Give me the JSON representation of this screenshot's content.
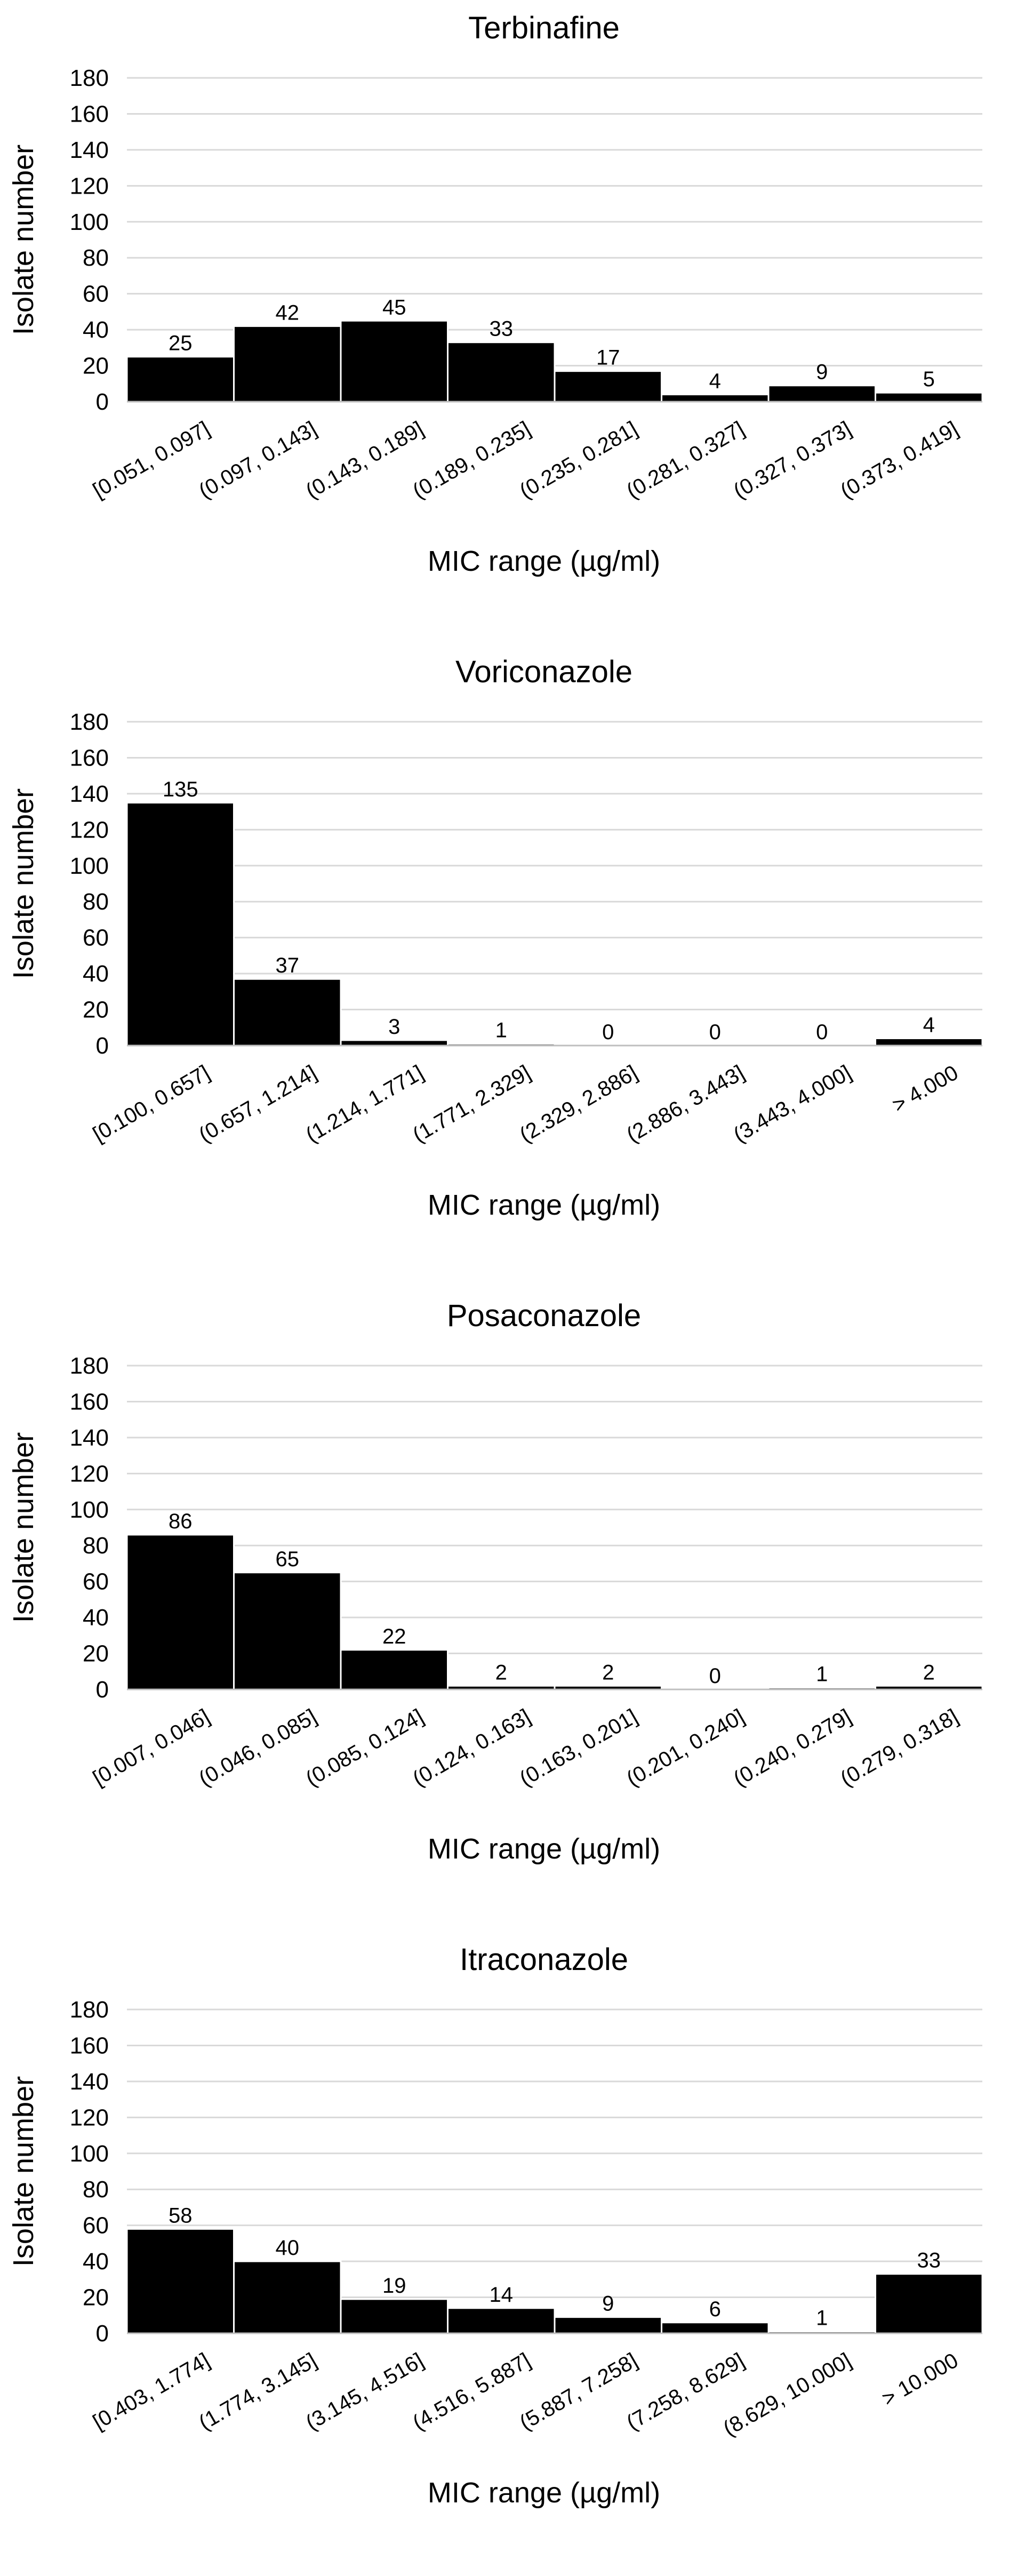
{
  "chart_data": [
    {
      "type": "bar",
      "title": "Terbinafine",
      "ylabel": "Isolate number",
      "xlabel": "MIC range (µg/ml)",
      "ylim": [
        0,
        180
      ],
      "yticks": [
        0,
        20,
        40,
        60,
        80,
        100,
        120,
        140,
        160,
        180
      ],
      "categories": [
        "[0.051, 0.097]",
        "(0.097, 0.143]",
        "(0.143, 0.189]",
        "(0.189, 0.235]",
        "(0.235, 0.281]",
        "(0.281, 0.327]",
        "(0.327, 0.373]",
        "(0.373, 0.419]"
      ],
      "values": [
        25,
        42,
        45,
        33,
        17,
        4,
        9,
        5
      ],
      "grid": true,
      "bar_color": "#000000"
    },
    {
      "type": "bar",
      "title": "Voriconazole",
      "ylabel": "Isolate number",
      "xlabel": "MIC range (µg/ml)",
      "ylim": [
        0,
        180
      ],
      "yticks": [
        0,
        20,
        40,
        60,
        80,
        100,
        120,
        140,
        160,
        180
      ],
      "categories": [
        "[0.100, 0.657]",
        "(0.657, 1.214]",
        "(1.214, 1.771]",
        "(1.771, 2.329]",
        "(2.329, 2.886]",
        "(2.886, 3.443]",
        "(3.443, 4.000]",
        "> 4.000"
      ],
      "values": [
        135,
        37,
        3,
        1,
        0,
        0,
        0,
        4
      ],
      "grid": true,
      "bar_color": "#000000"
    },
    {
      "type": "bar",
      "title": "Posaconazole",
      "ylabel": "Isolate number",
      "xlabel": "MIC range (µg/ml)",
      "ylim": [
        0,
        180
      ],
      "yticks": [
        0,
        20,
        40,
        60,
        80,
        100,
        120,
        140,
        160,
        180
      ],
      "categories": [
        "[0.007, 0.046]",
        "(0.046, 0.085]",
        "(0.085, 0.124]",
        "(0.124, 0.163]",
        "(0.163, 0.201]",
        "(0.201, 0.240]",
        "(0.240, 0.279]",
        "(0.279, 0.318]"
      ],
      "values": [
        86,
        65,
        22,
        2,
        2,
        0,
        1,
        2
      ],
      "grid": true,
      "bar_color": "#000000"
    },
    {
      "type": "bar",
      "title": "Itraconazole",
      "ylabel": "Isolate number",
      "xlabel": "MIC range (µg/ml)",
      "ylim": [
        0,
        180
      ],
      "yticks": [
        0,
        20,
        40,
        60,
        80,
        100,
        120,
        140,
        160,
        180
      ],
      "categories": [
        "[0.403, 1.774]",
        "(1.774, 3.145]",
        "(3.145, 4.516]",
        "(4.516, 5.887]",
        "(5.887, 7.258]",
        "(7.258, 8.629]",
        "(8.629, 10.000]",
        "> 10.000"
      ],
      "values": [
        58,
        40,
        19,
        14,
        9,
        6,
        1,
        33
      ],
      "grid": true,
      "bar_color": "#000000"
    }
  ]
}
